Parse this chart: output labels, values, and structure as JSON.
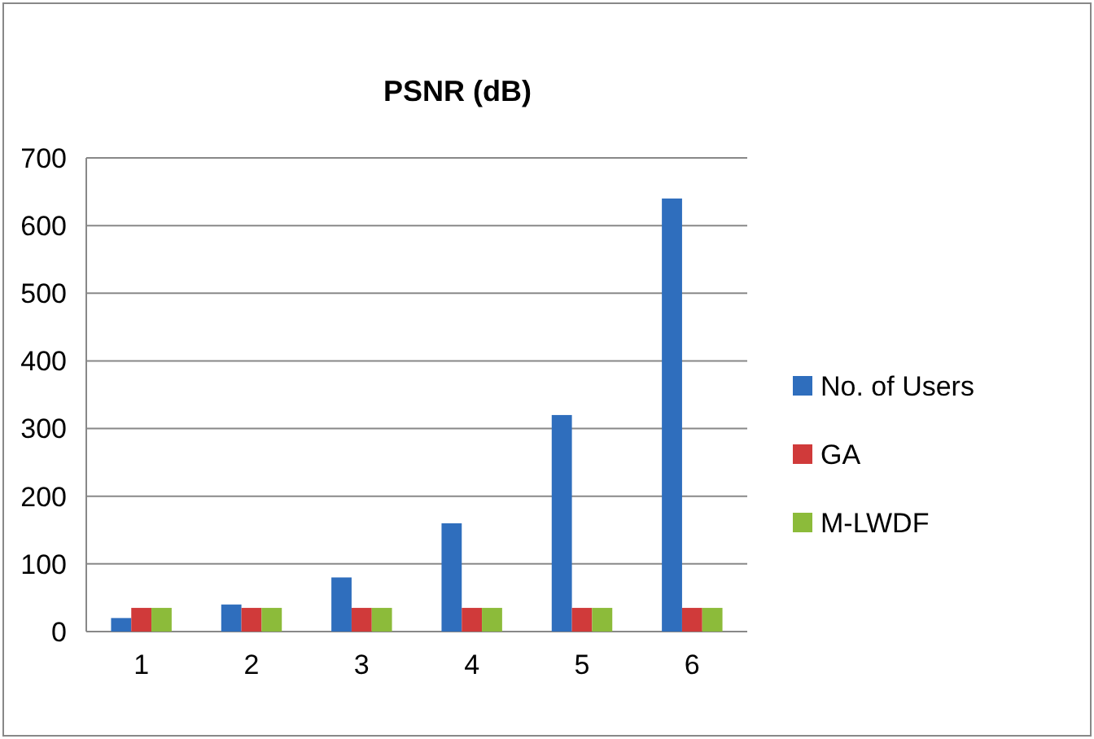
{
  "chart_data": {
    "type": "bar",
    "title": "PSNR (dB)",
    "categories": [
      "1",
      "2",
      "3",
      "4",
      "5",
      "6"
    ],
    "series": [
      {
        "name": "No. of Users",
        "color": "#2f6ebd",
        "values": [
          20,
          40,
          80,
          160,
          320,
          640
        ]
      },
      {
        "name": "GA",
        "color": "#d03a3a",
        "values": [
          35,
          35,
          35,
          35,
          35,
          35
        ]
      },
      {
        "name": "M-LWDF",
        "color": "#8cbb3a",
        "values": [
          35,
          35,
          35,
          35,
          35,
          35
        ]
      }
    ],
    "ylim": [
      0,
      700
    ],
    "yticks": [
      0,
      100,
      200,
      300,
      400,
      500,
      600,
      700
    ],
    "grid": "y",
    "legend": "right"
  }
}
